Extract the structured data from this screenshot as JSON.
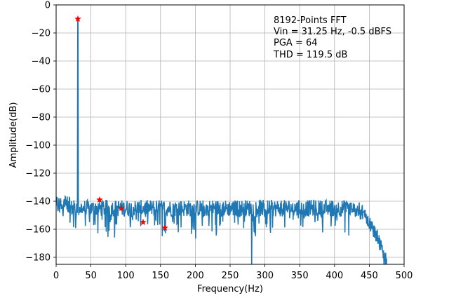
{
  "chart_data": {
    "type": "line",
    "title": "",
    "xlabel": "Frequency(Hz)",
    "ylabel": "Amplitude(dB)",
    "xlim": [
      0,
      500
    ],
    "ylim": [
      -185,
      0
    ],
    "grid": true,
    "x_ticks": [
      0,
      50,
      100,
      150,
      200,
      250,
      300,
      350,
      400,
      450,
      500
    ],
    "x_tick_labels": [
      "0",
      "50",
      "100",
      "150",
      "200",
      "250",
      "300",
      "350",
      "400",
      "450",
      "500"
    ],
    "y_ticks": [
      0,
      -20,
      -40,
      -60,
      -80,
      -100,
      -120,
      -140,
      -160,
      -180
    ],
    "y_tick_labels": [
      "0",
      "−20",
      "−40",
      "−60",
      "−80",
      "−100",
      "−120",
      "−140",
      "−160",
      "−180"
    ],
    "annotation": [
      "8192-Points FFT",
      "Vin = 31.25 Hz, -0.5 dBFS",
      "PGA = 64",
      "THD = 119.5 dB"
    ],
    "series": [
      {
        "name": "FFT spectrum",
        "color": "#1f77b4",
        "noise_floor_db": -145,
        "noise_floor_start_db": -142,
        "rolloff_start_hz": 425,
        "end_hz": 475,
        "end_db": -185,
        "fundamental": {
          "x": 31.25,
          "y": -10
        }
      },
      {
        "name": "harmonic markers",
        "color": "#ff0000",
        "marker": "star",
        "points": [
          {
            "x": 31.25,
            "y": -10
          },
          {
            "x": 62.5,
            "y": -139
          },
          {
            "x": 93.75,
            "y": -145
          },
          {
            "x": 125,
            "y": -155
          },
          {
            "x": 156.25,
            "y": -159
          }
        ]
      }
    ]
  }
}
